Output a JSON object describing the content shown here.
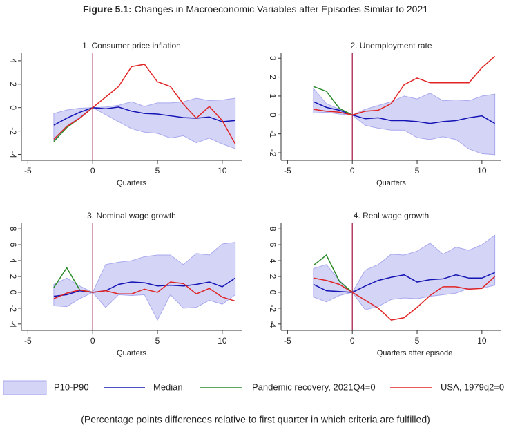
{
  "header": {
    "label": "Figure 5.1:",
    "title": "Changes in Macroeconomic Variables after Episodes Similar to 2021"
  },
  "legend": [
    {
      "name": "P10-P90",
      "kind": "band",
      "color": "#d4d4f7",
      "edge": "#a8a8ee"
    },
    {
      "name": "Median",
      "kind": "line",
      "color": "#1414b4"
    },
    {
      "name": "Pandemic recovery, 2021Q4=0",
      "kind": "line",
      "color": "#2a8a2a"
    },
    {
      "name": "USA, 1979q2=0",
      "kind": "line",
      "color": "#e02424"
    }
  ],
  "note": "(Percentage points differences relative to first quarter in which criteria are fulfilled)",
  "chart_data": [
    {
      "type": "line",
      "title": "1. Consumer price inflation",
      "xlabel": "Quarters",
      "xlim": [
        -5.5,
        11.5
      ],
      "xticks": [
        -5,
        0,
        5,
        10
      ],
      "ylim": [
        -4.5,
        4.7
      ],
      "yticks": [
        -4,
        -2,
        0,
        2,
        4
      ],
      "vline": 0,
      "vline_color": "#a01040",
      "x": [
        -3,
        -2,
        -1,
        0,
        1,
        2,
        3,
        4,
        5,
        6,
        7,
        8,
        9,
        10,
        11
      ],
      "series": [
        {
          "lower": [
            -2.8,
            -1.6,
            -0.8,
            0,
            -0.6,
            -1.2,
            -1.8,
            -2.1,
            -2.2,
            -2.6,
            -2.4,
            -3.0,
            -2.6,
            -3.1,
            -3.5
          ],
          "upper": [
            -0.5,
            -0.2,
            -0.05,
            0,
            0.05,
            0.2,
            0.5,
            0.1,
            0.4,
            0.4,
            0.5,
            0.8,
            0.6,
            0.65,
            0.8
          ]
        },
        {
          "values": [
            -1.5,
            -0.9,
            -0.4,
            0,
            -0.1,
            0.05,
            -0.3,
            -0.5,
            -0.55,
            -0.7,
            -0.85,
            -0.9,
            -0.8,
            -1.2,
            -1.1
          ]
        },
        {
          "values": [
            -2.9,
            -1.7,
            -0.9,
            0,
            null,
            null,
            null,
            null,
            null,
            null,
            null,
            null,
            null,
            null,
            null
          ]
        },
        {
          "values": [
            -2.7,
            -1.6,
            -0.9,
            0,
            0.9,
            1.8,
            3.5,
            3.7,
            2.2,
            1.8,
            0.3,
            -0.9,
            0.1,
            -1.1,
            -3.1
          ]
        }
      ]
    },
    {
      "type": "line",
      "title": "2. Unemployment rate",
      "xlabel": "Quarters",
      "xlim": [
        -5.5,
        11.5
      ],
      "xticks": [
        -5,
        0,
        5,
        10
      ],
      "ylim": [
        -2.4,
        3.3
      ],
      "yticks": [
        -2,
        -1,
        0,
        1,
        2,
        3
      ],
      "vline": 0,
      "vline_color": "#a01040",
      "x": [
        -3,
        -2,
        -1,
        0,
        1,
        2,
        3,
        4,
        5,
        6,
        7,
        8,
        9,
        10,
        11
      ],
      "series": [
        {
          "lower": [
            0.1,
            0.15,
            0.05,
            0,
            -0.55,
            -0.7,
            -0.8,
            -0.8,
            -1.2,
            -1.3,
            -1.15,
            -1.3,
            -1.8,
            -2.05,
            -2.1
          ],
          "upper": [
            1.4,
            0.6,
            0.3,
            0,
            0.3,
            0.5,
            0.7,
            1.0,
            0.85,
            1.15,
            0.75,
            0.8,
            0.75,
            1.0,
            1.1
          ]
        },
        {
          "values": [
            0.7,
            0.4,
            0.25,
            0,
            -0.2,
            -0.15,
            -0.3,
            -0.3,
            -0.35,
            -0.45,
            -0.35,
            -0.3,
            -0.15,
            -0.05,
            -0.45
          ]
        },
        {
          "values": [
            1.5,
            1.25,
            0.35,
            0,
            null,
            null,
            null,
            null,
            null,
            null,
            null,
            null,
            null,
            null,
            null
          ]
        },
        {
          "values": [
            0.3,
            0.2,
            0.15,
            0,
            0.2,
            0.25,
            0.6,
            1.6,
            1.95,
            1.7,
            1.7,
            1.7,
            1.7,
            2.5,
            3.1
          ]
        }
      ]
    },
    {
      "type": "line",
      "title": "3. Nominal wage growth",
      "xlabel": "Quarters",
      "xlim": [
        -5.5,
        11.5
      ],
      "xticks": [
        -5,
        0,
        5,
        10
      ],
      "ylim": [
        -4.8,
        8.8
      ],
      "yticks": [
        -4,
        -2,
        0,
        2,
        4,
        6,
        8
      ],
      "vline": 0,
      "vline_color": "#a01040",
      "x": [
        -3,
        -2,
        -1,
        0,
        1,
        2,
        3,
        4,
        5,
        6,
        7,
        8,
        9,
        10,
        11
      ],
      "series": [
        {
          "lower": [
            -1.7,
            -1.8,
            -0.8,
            0,
            -1.9,
            -0.3,
            -0.4,
            -0.3,
            -3.5,
            -0.3,
            -2.0,
            -1.9,
            -1.0,
            -1.5,
            -0.3
          ],
          "upper": [
            1.0,
            1.8,
            0.8,
            0,
            3.5,
            3.8,
            4.0,
            4.5,
            4.7,
            4.7,
            3.5,
            4.9,
            4.7,
            6.1,
            6.3
          ]
        },
        {
          "values": [
            -0.5,
            -0.3,
            0.2,
            0,
            0.2,
            1.0,
            1.3,
            1.2,
            0.8,
            0.9,
            0.8,
            1.0,
            1.3,
            0.7,
            1.8
          ]
        },
        {
          "values": [
            0.6,
            3.1,
            0.3,
            0,
            null,
            null,
            null,
            null,
            null,
            null,
            null,
            null,
            null,
            null,
            null
          ]
        },
        {
          "values": [
            -0.8,
            -0.1,
            0.3,
            0,
            0.2,
            -0.2,
            -0.2,
            0.4,
            0,
            1.3,
            1.1,
            -0.2,
            0.5,
            -0.6,
            -1.1
          ]
        }
      ]
    },
    {
      "type": "line",
      "title": "4. Real wage growth",
      "xlabel": "Quarters after episode",
      "xlim": [
        -5.5,
        11.5
      ],
      "xticks": [
        -5,
        0,
        5,
        10
      ],
      "ylim": [
        -4.8,
        8.8
      ],
      "yticks": [
        -4,
        -2,
        0,
        2,
        4,
        6,
        8
      ],
      "vline": 0,
      "vline_color": "#a01040",
      "x": [
        -3,
        -2,
        -1,
        0,
        1,
        2,
        3,
        4,
        5,
        6,
        7,
        8,
        9,
        10,
        11
      ],
      "series": [
        {
          "lower": [
            -0.6,
            -1.2,
            -0.4,
            0,
            -2.2,
            -1.8,
            -0.9,
            -0.7,
            -0.8,
            -0.5,
            -0.3,
            -0.1,
            0.5,
            0.5,
            0.9
          ],
          "upper": [
            3.0,
            3.5,
            1.5,
            0,
            2.8,
            3.5,
            4.8,
            4.7,
            5.2,
            6.2,
            4.8,
            5.7,
            5.3,
            6.0,
            7.2
          ]
        },
        {
          "values": [
            1.0,
            0.2,
            0.1,
            0,
            0.8,
            1.5,
            1.9,
            2.2,
            1.3,
            1.6,
            1.7,
            2.2,
            1.8,
            1.8,
            2.5
          ]
        },
        {
          "values": [
            3.4,
            4.7,
            1.4,
            0,
            null,
            null,
            null,
            null,
            null,
            null,
            null,
            null,
            null,
            null,
            null
          ]
        },
        {
          "values": [
            1.8,
            1.5,
            1.0,
            0,
            -1.0,
            -2.0,
            -3.5,
            -3.2,
            -1.9,
            -0.4,
            0.7,
            0.7,
            0.4,
            0.5,
            2.0
          ]
        }
      ]
    }
  ]
}
